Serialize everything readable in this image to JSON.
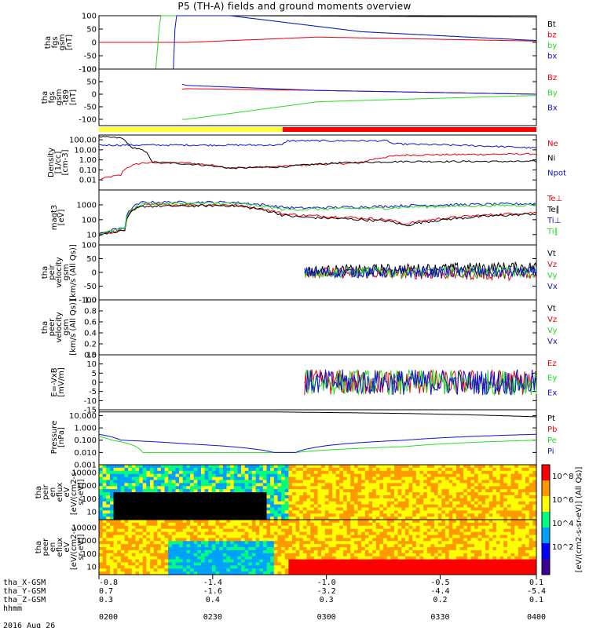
{
  "title": "P5 (TH-A) fields and ground moments overview",
  "date": "2016 Aug 26",
  "colors": {
    "black": "#000000",
    "red": "#e8000b",
    "green": "#22dd22",
    "blue": "#1010d0",
    "yellow": "#ffff33",
    "bar_red": "#ff0000"
  },
  "x_axis": {
    "time_labels": [
      "0200",
      "0230",
      "0300",
      "0330",
      "0400"
    ],
    "rows": [
      {
        "name": "tha_X-GSM",
        "values": [
          "-0.8",
          "-1.4",
          "-1.0",
          "-0.5",
          "0.1"
        ]
      },
      {
        "name": "tha_Y-GSM",
        "values": [
          "0.7",
          "-1.6",
          "-3.2",
          "-4.4",
          "-5.4"
        ]
      },
      {
        "name": "tha_Z-GSM",
        "values": [
          "0.3",
          "0.4",
          "0.3",
          "0.2",
          "0.1"
        ]
      },
      {
        "name": "hhmm",
        "values": []
      }
    ]
  },
  "colorbar": {
    "label": "[eV/(cm2-s-sr-eV)] (All Qs)]",
    "ticks": [
      "10^8",
      "10^6",
      "10^4",
      "10^2"
    ]
  },
  "chart_data": [
    {
      "type": "line",
      "panel": "fgs",
      "ylabel": [
        "tha",
        "fgs",
        "gsm",
        "[nT]"
      ],
      "ylim": [
        -100,
        100
      ],
      "ticks": [
        "100",
        "50",
        "0",
        "-50",
        "-100"
      ],
      "series": [
        {
          "name": "Bt",
          "color": "black",
          "x": [
            0.2,
            0.33,
            1.0
          ],
          "y": [
            100,
            100,
            95
          ]
        },
        {
          "name": "bz",
          "color": "red",
          "x": [
            0.0,
            0.2,
            0.5,
            1.0
          ],
          "y": [
            0,
            0,
            20,
            5
          ]
        },
        {
          "name": "by",
          "color": "green",
          "x": [
            0.13,
            0.14,
            0.3,
            0.6,
            1.0
          ],
          "y": [
            -100,
            100,
            100,
            40,
            7
          ]
        },
        {
          "name": "bx",
          "color": "blue",
          "x": [
            0.17,
            0.175,
            0.3,
            0.6,
            1.0
          ],
          "y": [
            -100,
            100,
            100,
            40,
            7
          ]
        }
      ]
    },
    {
      "type": "line",
      "panel": "fgs-t89",
      "ylabel": [
        "tha",
        "fgs",
        "gsm",
        "-t89",
        "[nT]"
      ],
      "ylim": [
        -125,
        100
      ],
      "ticks": [
        "100",
        "50",
        "0",
        "-50",
        "-100"
      ],
      "series": [
        {
          "name": "Bz",
          "color": "red",
          "x": [
            0.19,
            0.2,
            0.5,
            1.0
          ],
          "y": [
            20,
            22,
            15,
            0
          ]
        },
        {
          "name": "By",
          "color": "green",
          "x": [
            0.19,
            0.2,
            0.5,
            1.0
          ],
          "y": [
            -100,
            -100,
            -30,
            -5
          ]
        },
        {
          "name": "Bx",
          "color": "blue",
          "x": [
            0.19,
            0.2,
            0.5,
            1.0
          ],
          "y": [
            40,
            35,
            15,
            0
          ]
        }
      ]
    },
    {
      "type": "bar",
      "panel": "mode-bar",
      "segments": [
        {
          "from": 0.0,
          "to": 0.42,
          "color": "yellow"
        },
        {
          "from": 0.42,
          "to": 1.0,
          "color": "bar_red"
        }
      ]
    },
    {
      "type": "line",
      "panel": "density",
      "ylabel": [
        "Density",
        "[1/cc]",
        "[cm-3]"
      ],
      "log_scale": true,
      "ylim": [
        0.001,
        300
      ],
      "ticks": [
        "100.00",
        "10.00",
        "1.00",
        "0.10",
        "0.01"
      ],
      "series": [
        {
          "name": "Ne",
          "color": "red",
          "x": [
            0.0,
            0.05,
            0.1,
            0.2,
            0.3,
            0.4,
            0.6,
            0.7,
            1.0
          ],
          "y": [
            0.01,
            0.03,
            0.5,
            0.5,
            0.15,
            0.2,
            0.5,
            3,
            4
          ]
        },
        {
          "name": "Ni",
          "color": "black",
          "x": [
            0.0,
            0.05,
            0.07,
            0.12,
            0.3,
            0.42,
            0.55,
            0.7,
            1.0
          ],
          "y": [
            200,
            150,
            20,
            0.6,
            0.15,
            0.2,
            0.5,
            0.7,
            0.7
          ]
        },
        {
          "name": "Npot",
          "color": "blue",
          "x": [
            0.0,
            0.42,
            0.43,
            0.66,
            0.67,
            1.0
          ],
          "y": [
            30,
            30,
            80,
            80,
            40,
            15
          ]
        }
      ]
    },
    {
      "type": "line",
      "panel": "temperature",
      "ylabel": [
        "magt3",
        "[eV]"
      ],
      "log_scale": true,
      "ylim": [
        2,
        10000
      ],
      "ticks": [
        "1000",
        "100",
        "10"
      ],
      "series": [
        {
          "name": "Te⊥",
          "color": "red",
          "x": [
            0.0,
            0.06,
            0.1,
            0.3,
            0.42,
            0.46,
            0.66,
            0.7,
            1.0
          ],
          "y": [
            10,
            20,
            1000,
            1000,
            250,
            200,
            100,
            50,
            300
          ]
        },
        {
          "name": "Te∥",
          "color": "black",
          "x": [
            0.0,
            0.06,
            0.1,
            0.3,
            0.42,
            0.46,
            0.66,
            0.7,
            1.0
          ],
          "y": [
            10,
            20,
            800,
            900,
            200,
            150,
            80,
            40,
            250
          ]
        },
        {
          "name": "Ti⊥",
          "color": "blue",
          "x": [
            0.0,
            0.06,
            0.1,
            0.3,
            0.42,
            0.46,
            0.66,
            0.7,
            1.0
          ],
          "y": [
            10,
            30,
            1500,
            1500,
            700,
            600,
            800,
            900,
            1200
          ]
        },
        {
          "name": "Ti∥",
          "color": "green",
          "x": [
            0.0,
            0.06,
            0.1,
            0.3,
            0.42,
            0.46,
            0.66,
            0.7,
            1.0
          ],
          "y": [
            10,
            30,
            1200,
            1300,
            500,
            500,
            600,
            700,
            1000
          ]
        }
      ]
    },
    {
      "type": "line",
      "panel": "velocity-peir",
      "ylabel": [
        "tha",
        "peir",
        "velocity",
        "gsm",
        "[km/s (All Qs)]"
      ],
      "ylim": [
        -100,
        100
      ],
      "ticks": [
        "100",
        "50",
        "0",
        "-50",
        "-100"
      ],
      "series": [
        {
          "name": "Vt",
          "color": "black",
          "x": [
            0.47,
            1.0
          ],
          "y": [
            5,
            20
          ]
        },
        {
          "name": "Vz",
          "color": "red",
          "x": [
            0.47,
            1.0
          ],
          "y": [
            0,
            -10
          ]
        },
        {
          "name": "Vy",
          "color": "green",
          "x": [
            0.47,
            1.0
          ],
          "y": [
            0,
            0
          ]
        },
        {
          "name": "Vx",
          "color": "blue",
          "x": [
            0.47,
            1.0
          ],
          "y": [
            0,
            0
          ]
        }
      ]
    },
    {
      "type": "line",
      "panel": "velocity-peer",
      "ylabel": [
        "tha",
        "peer",
        "velocity",
        "gsm",
        "[km/s (All Qs)]"
      ],
      "ylim": [
        0,
        1
      ],
      "ticks": [
        "1.0",
        "0.8",
        "0.6",
        "0.4",
        "0.2",
        "0.0"
      ],
      "series": [
        {
          "name": "Vt",
          "color": "black",
          "x": [],
          "y": []
        },
        {
          "name": "Vz",
          "color": "red",
          "x": [],
          "y": []
        },
        {
          "name": "Vy",
          "color": "green",
          "x": [],
          "y": []
        },
        {
          "name": "Vx",
          "color": "blue",
          "x": [],
          "y": []
        }
      ]
    },
    {
      "type": "line",
      "panel": "efield",
      "ylabel": [
        "E=-VxB",
        "[mV/m]"
      ],
      "ylim": [
        -15,
        15
      ],
      "ticks": [
        "15",
        "10",
        "5",
        "0",
        "-5",
        "-10",
        "-15"
      ],
      "series": [
        {
          "name": "Ez",
          "color": "red",
          "x": [
            0.47,
            1.0
          ],
          "y": [
            0,
            0
          ]
        },
        {
          "name": "Ey",
          "color": "green",
          "x": [
            0.47,
            1.0
          ],
          "y": [
            0,
            0
          ]
        },
        {
          "name": "Ex",
          "color": "blue",
          "x": [
            0.47,
            1.0
          ],
          "y": [
            0,
            0
          ]
        }
      ]
    },
    {
      "type": "line",
      "panel": "pressure",
      "ylabel": [
        "Pressure",
        "[nPa]"
      ],
      "log_scale": true,
      "ylim": [
        0.001,
        30
      ],
      "ticks": [
        "10.000",
        "1.000",
        "0.100",
        "0.010",
        "0.001"
      ],
      "series": [
        {
          "name": "Pt",
          "color": "black",
          "x": [
            0.0,
            0.4,
            0.7,
            1.0
          ],
          "y": [
            20,
            20,
            15,
            8
          ]
        },
        {
          "name": "Pb",
          "color": "red",
          "x": [],
          "y": []
        },
        {
          "name": "Pe",
          "color": "green",
          "x": [
            0.0,
            0.03,
            0.1,
            0.2,
            0.3,
            0.45,
            0.7,
            1.0
          ],
          "y": [
            0.2,
            0.1,
            0.01,
            0.01,
            0.01,
            0.01,
            0.03,
            0.1
          ]
        },
        {
          "name": "Pi",
          "color": "blue",
          "x": [
            0.0,
            0.05,
            0.2,
            0.4,
            0.45,
            0.7,
            1.0
          ],
          "y": [
            0.3,
            0.1,
            0.05,
            0.01,
            0.01,
            0.1,
            0.3
          ]
        }
      ]
    },
    {
      "type": "heatmap",
      "panel": "peir-spectrogram",
      "ylabel": [
        "tha",
        "peir",
        "en",
        "eflux",
        "eV",
        "[eV/(cm2-s-",
        "sr-eV)]"
      ],
      "log_scale": true,
      "ticks": [
        "10000",
        "1000",
        "100",
        "10"
      ]
    },
    {
      "type": "heatmap",
      "panel": "peer-spectrogram",
      "ylabel": [
        "tha",
        "peer",
        "en",
        "eflux",
        "eV",
        "[eV/(cm2-s-",
        "sr-eV)]"
      ],
      "log_scale": true,
      "ticks": [
        "10000",
        "1000",
        "100",
        "10"
      ]
    }
  ]
}
